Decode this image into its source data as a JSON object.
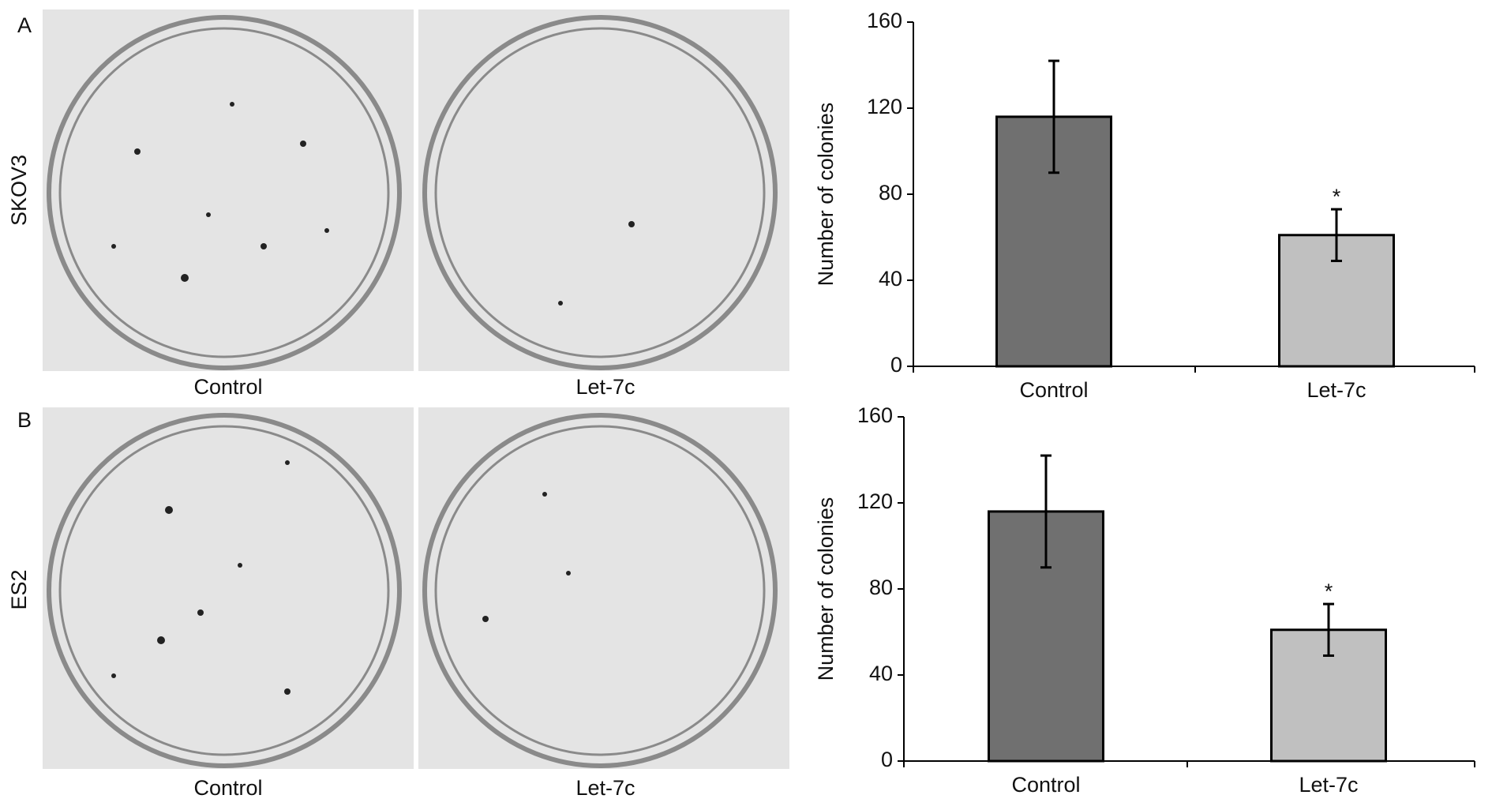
{
  "panels": [
    {
      "label": "A",
      "cell_line": "SKOV3",
      "images": [
        "Control",
        "Let-7c"
      ]
    },
    {
      "label": "B",
      "cell_line": "ES2",
      "images": [
        "Control",
        "Let-7c"
      ]
    }
  ],
  "chart_data": [
    {
      "type": "bar",
      "ylabel": "Number of colonies",
      "categories": [
        "Control",
        "Let-7c"
      ],
      "values": [
        116,
        61
      ],
      "errors": [
        26,
        12
      ],
      "colors": [
        "#707070",
        "#c0c0c0"
      ],
      "annotations": [
        {
          "text": "*",
          "category": "Let-7c"
        }
      ],
      "ylim": [
        0,
        160
      ],
      "yticks": [
        0,
        40,
        80,
        120,
        160
      ]
    },
    {
      "type": "bar",
      "ylabel": "Number of colonies",
      "categories": [
        "Control",
        "Let-7c"
      ],
      "values": [
        116,
        61
      ],
      "errors": [
        26,
        12
      ],
      "colors": [
        "#707070",
        "#c0c0c0"
      ],
      "annotations": [
        {
          "text": "*",
          "category": "Let-7c"
        }
      ],
      "ylim": [
        0,
        160
      ],
      "yticks": [
        0,
        40,
        80,
        120,
        160
      ]
    }
  ]
}
